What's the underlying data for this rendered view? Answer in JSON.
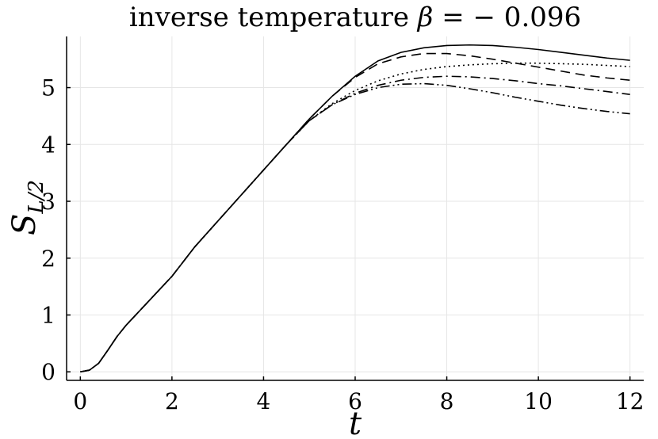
{
  "chart_data": {
    "type": "line",
    "title_prefix": "inverse temperature ",
    "title_beta": "β",
    "title_suffix": " = − 0.096",
    "xlabel": "t",
    "ylabel_main": "S",
    "ylabel_sub": "L/2",
    "xlim": [
      -0.3,
      12.3
    ],
    "ylim": [
      -0.15,
      5.9
    ],
    "xticks": [
      0,
      2,
      4,
      6,
      8,
      10,
      12
    ],
    "yticks": [
      0,
      1,
      2,
      3,
      4,
      5
    ],
    "grid": true,
    "series": [
      {
        "style": "solid",
        "x": [
          0,
          0.2,
          0.4,
          0.6,
          0.8,
          1,
          1.5,
          2,
          2.5,
          3,
          3.5,
          4,
          4.5,
          5,
          5.5,
          6,
          6.5,
          7,
          7.5,
          8,
          8.5,
          9,
          9.5,
          10,
          10.5,
          11,
          11.5,
          12
        ],
        "y": [
          0,
          0.03,
          0.15,
          0.38,
          0.62,
          0.82,
          1.25,
          1.68,
          2.2,
          2.65,
          3.1,
          3.55,
          4.0,
          4.45,
          4.85,
          5.2,
          5.47,
          5.62,
          5.7,
          5.74,
          5.75,
          5.74,
          5.71,
          5.67,
          5.62,
          5.57,
          5.52,
          5.48
        ]
      },
      {
        "style": "dash",
        "x": [
          0,
          0.2,
          0.4,
          0.6,
          0.8,
          1,
          1.5,
          2,
          2.5,
          3,
          3.5,
          4,
          4.5,
          5,
          5.5,
          6,
          6.5,
          7,
          7.5,
          8,
          8.5,
          9,
          9.5,
          10,
          10.5,
          11,
          11.5,
          12
        ],
        "y": [
          0,
          0.03,
          0.15,
          0.38,
          0.62,
          0.82,
          1.25,
          1.68,
          2.2,
          2.65,
          3.1,
          3.55,
          4.0,
          4.45,
          4.85,
          5.18,
          5.42,
          5.54,
          5.6,
          5.6,
          5.56,
          5.5,
          5.43,
          5.36,
          5.29,
          5.22,
          5.17,
          5.13
        ]
      },
      {
        "style": "dot",
        "x": [
          0,
          0.2,
          0.4,
          0.6,
          0.8,
          1,
          1.5,
          2,
          2.5,
          3,
          3.5,
          4,
          4.5,
          5,
          5.5,
          6,
          6.5,
          7,
          7.5,
          8,
          8.5,
          9,
          9.5,
          10,
          10.5,
          11,
          11.5,
          12
        ],
        "y": [
          0,
          0.03,
          0.15,
          0.38,
          0.62,
          0.82,
          1.25,
          1.68,
          2.2,
          2.65,
          3.1,
          3.55,
          4.0,
          4.42,
          4.72,
          4.95,
          5.12,
          5.24,
          5.32,
          5.37,
          5.4,
          5.42,
          5.43,
          5.43,
          5.42,
          5.41,
          5.39,
          5.37
        ]
      },
      {
        "style": "dashdot",
        "x": [
          0,
          0.2,
          0.4,
          0.6,
          0.8,
          1,
          1.5,
          2,
          2.5,
          3,
          3.5,
          4,
          4.5,
          5,
          5.5,
          6,
          6.5,
          7,
          7.5,
          8,
          8.5,
          9,
          9.5,
          10,
          10.5,
          11,
          11.5,
          12
        ],
        "y": [
          0,
          0.03,
          0.15,
          0.38,
          0.62,
          0.82,
          1.25,
          1.68,
          2.2,
          2.65,
          3.1,
          3.55,
          4.0,
          4.42,
          4.7,
          4.9,
          5.04,
          5.13,
          5.18,
          5.2,
          5.19,
          5.16,
          5.12,
          5.07,
          5.03,
          4.98,
          4.93,
          4.88
        ]
      },
      {
        "style": "dashdotdot",
        "x": [
          0,
          0.2,
          0.4,
          0.6,
          0.8,
          1,
          1.5,
          2,
          2.5,
          3,
          3.5,
          4,
          4.5,
          5,
          5.5,
          6,
          6.5,
          7,
          7.5,
          8,
          8.5,
          9,
          9.5,
          10,
          10.5,
          11,
          11.5,
          12
        ],
        "y": [
          0,
          0.03,
          0.15,
          0.38,
          0.62,
          0.82,
          1.25,
          1.68,
          2.2,
          2.65,
          3.1,
          3.55,
          4.0,
          4.42,
          4.7,
          4.88,
          5.0,
          5.06,
          5.07,
          5.04,
          4.98,
          4.91,
          4.83,
          4.76,
          4.69,
          4.63,
          4.58,
          4.54
        ]
      }
    ]
  }
}
